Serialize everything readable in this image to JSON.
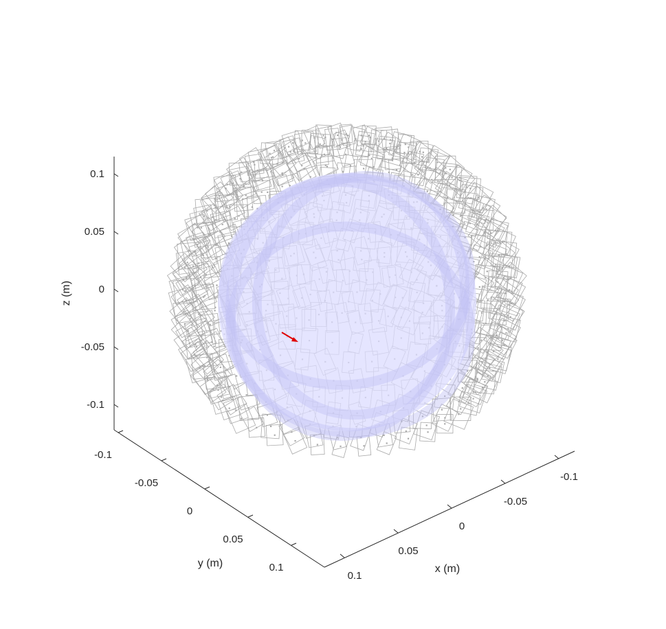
{
  "chart_data": {
    "type": "scatter3d",
    "title": "",
    "axes": {
      "x": {
        "label": "x (m)",
        "ticks": [
          0.1,
          0.05,
          0,
          -0.05,
          -0.1
        ],
        "tick_labels": [
          "0.1",
          "0.05",
          "0",
          "-0.05",
          "-0.1"
        ],
        "lim": [
          -0.12,
          0.12
        ]
      },
      "y": {
        "label": "y (m)",
        "ticks": [
          -0.1,
          -0.05,
          0,
          0.05,
          0.1
        ],
        "tick_labels": [
          "-0.1",
          "-0.05",
          "0",
          "0.05",
          "0.1"
        ],
        "lim": [
          -0.12,
          0.12
        ]
      },
      "z": {
        "label": "z (m)",
        "ticks": [
          0.1,
          0.05,
          0,
          -0.05,
          -0.1
        ],
        "tick_labels": [
          "0.1",
          "0.05",
          "0",
          "-0.05",
          "-0.1"
        ],
        "lim": [
          -0.12,
          0.12
        ]
      }
    },
    "grid": false,
    "layers": [
      {
        "name": "sensor coils",
        "style": "wireframe squares",
        "color": "#a9a9a9"
      },
      {
        "name": "head surface",
        "style": "translucent mesh",
        "color": "#c8c8ff"
      },
      {
        "name": "dipole",
        "style": "arrow",
        "color": "#e00000"
      }
    ]
  }
}
